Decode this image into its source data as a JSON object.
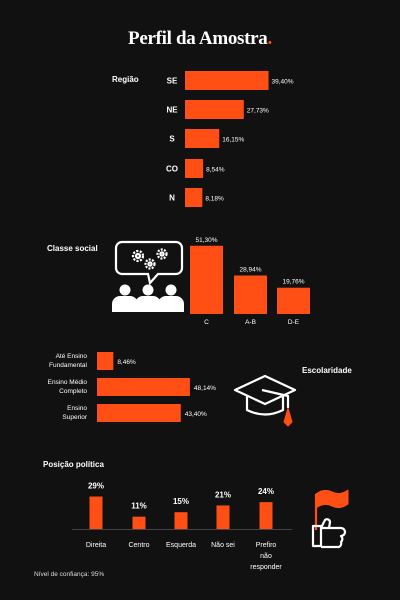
{
  "title": "Perfil da Amostra",
  "title_dot": ".",
  "footnote": "Nível de confiança: 95%",
  "colors": {
    "bar": "#ff4f14",
    "background": "#111111",
    "text": "#ffffff"
  },
  "icons": [
    "people-gears-icon",
    "graduation-cap-icon",
    "flag-hand-icon"
  ],
  "chart_data": [
    {
      "type": "bar",
      "orientation": "horizontal",
      "title": "Região",
      "categories": [
        "SE",
        "NE",
        "S",
        "CO",
        "N"
      ],
      "values": [
        39.4,
        27.73,
        16.15,
        8.54,
        8.18
      ],
      "value_labels": [
        "39,40%",
        "27,73%",
        "16,15%",
        "8,54%",
        "8,18%"
      ]
    },
    {
      "type": "bar",
      "orientation": "vertical",
      "title": "Classe social",
      "categories": [
        "C",
        "A-B",
        "D-E"
      ],
      "values": [
        51.3,
        28.94,
        19.76
      ],
      "value_labels": [
        "51,30%",
        "28,94%",
        "19,76%"
      ]
    },
    {
      "type": "bar",
      "orientation": "horizontal",
      "title": "Escolaridade",
      "categories": [
        [
          "Até Ensino",
          "Fundamental"
        ],
        [
          "Ensino Médio",
          "Completo"
        ],
        [
          "Ensino",
          "Superior"
        ]
      ],
      "values": [
        8.46,
        48.14,
        43.4
      ],
      "value_labels": [
        "8,46%",
        "48,14%",
        "43,40%"
      ]
    },
    {
      "type": "bar",
      "orientation": "vertical",
      "title": "Posição política",
      "categories": [
        [
          "Direita"
        ],
        [
          "Centro"
        ],
        [
          "Esquerda"
        ],
        [
          "Não sei"
        ],
        [
          "Prefiro",
          "não",
          "responder"
        ]
      ],
      "values": [
        29,
        11,
        15,
        21,
        24
      ],
      "value_labels": [
        "29%",
        "11%",
        "15%",
        "21%",
        "24%"
      ]
    }
  ]
}
